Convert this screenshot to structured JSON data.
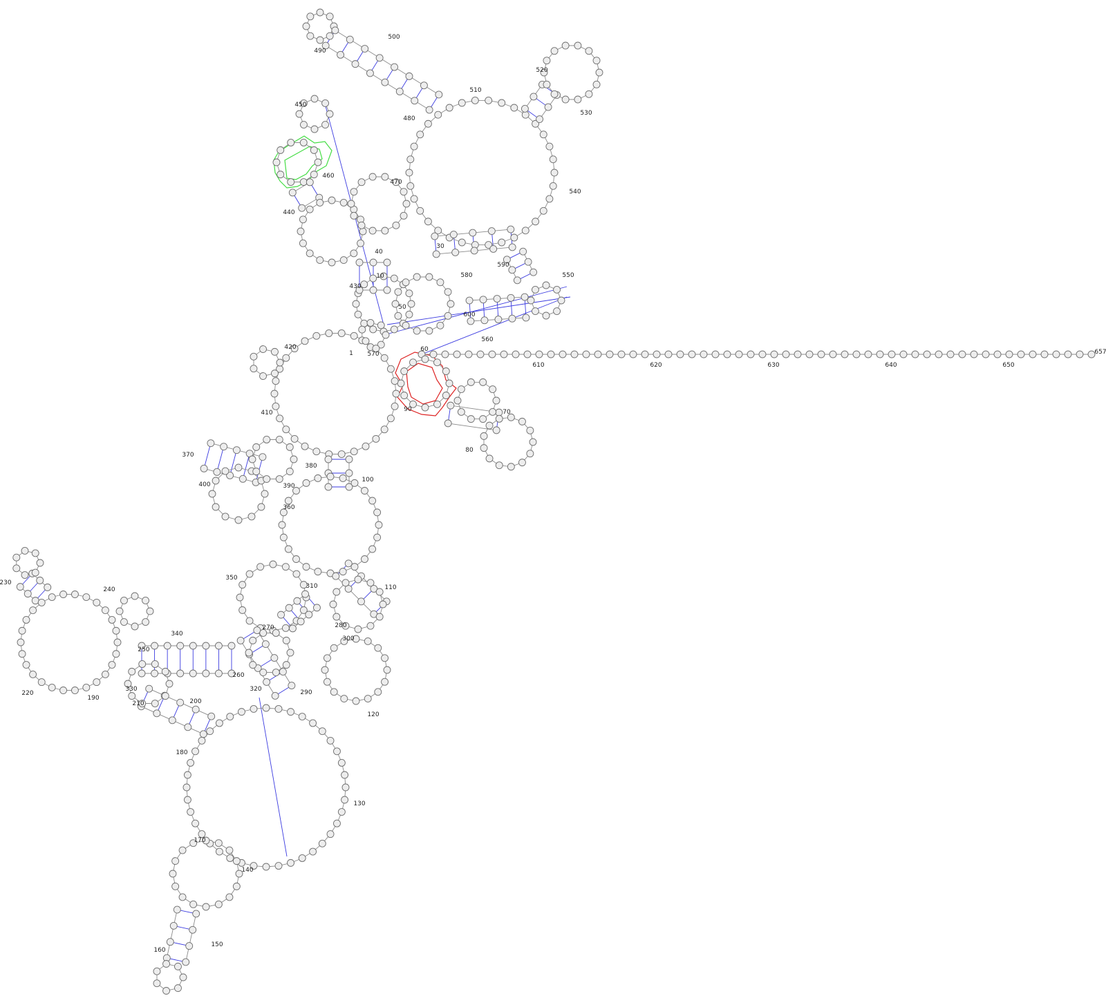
{
  "diagram": {
    "kind": "rna-secondary-structure",
    "colors": {
      "background": "#ffffff",
      "nucleotide_fill": "#ededed",
      "nucleotide_stroke": "#6e6e6e",
      "backbone": "#8a8a8a",
      "base_pair": "#3a3ae0",
      "highlight_green": "#44dd44",
      "highlight_red": "#dd2222",
      "label": "#222222"
    },
    "position_labels": [
      "1",
      "10",
      "30",
      "40",
      "50",
      "60",
      "70",
      "80",
      "90",
      "100",
      "110",
      "120",
      "130",
      "140",
      "150",
      "160",
      "170",
      "180",
      "190",
      "200",
      "210",
      "220",
      "230",
      "240",
      "250",
      "260",
      "270",
      "280",
      "290",
      "300",
      "310",
      "320",
      "330",
      "340",
      "350",
      "360",
      "370",
      "380",
      "390",
      "400",
      "410",
      "420",
      "430",
      "440",
      "450",
      "460",
      "470",
      "480",
      "490",
      "500",
      "510",
      "520",
      "530",
      "540",
      "550",
      "560",
      "570",
      "580",
      "590",
      "600",
      "610",
      "620",
      "630",
      "640",
      "650",
      "657"
    ]
  }
}
